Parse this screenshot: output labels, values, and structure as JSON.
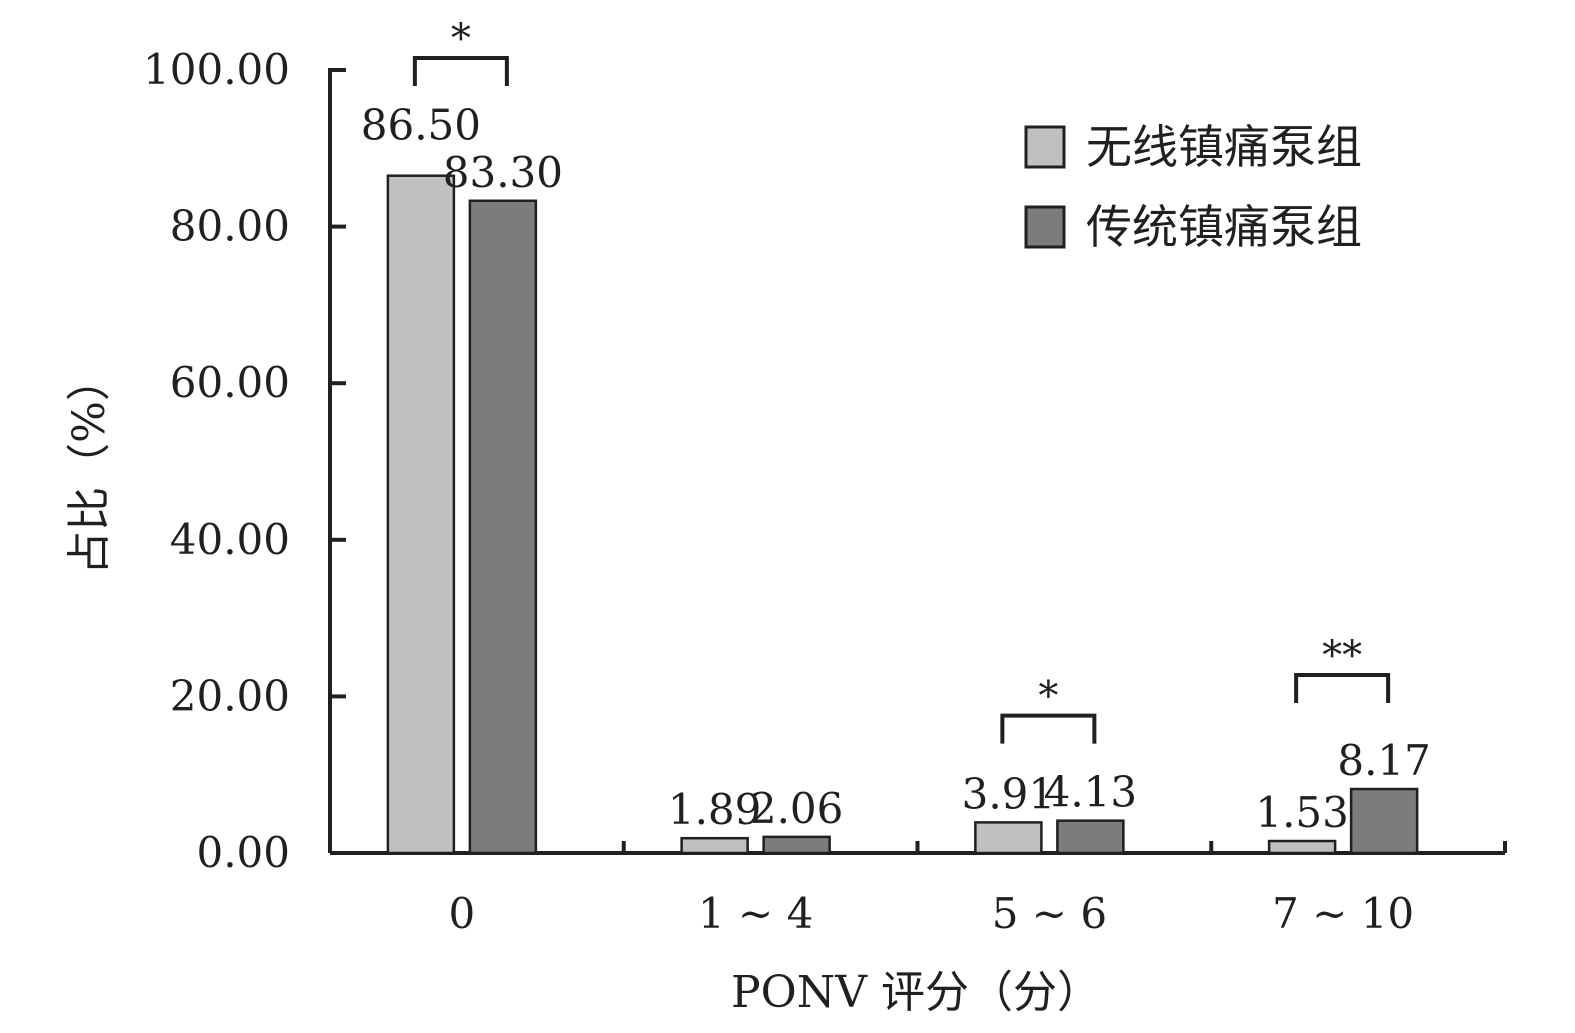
{
  "chart_data": {
    "type": "bar",
    "xlabel": "PONV 评分（分）",
    "ylabel": "占比（%）",
    "ylim": [
      0,
      100
    ],
    "yticks": [
      "0.00",
      "20.00",
      "40.00",
      "60.00",
      "80.00",
      "100.00"
    ],
    "categories": [
      "0",
      "1 ~ 4",
      "5 ~ 6",
      "7 ~ 10"
    ],
    "series": [
      {
        "name": "无线镇痛泵组",
        "color": "#c0c0c0",
        "values": [
          86.5,
          1.89,
          3.91,
          1.53
        ],
        "labels": [
          "86.50",
          "1.89",
          "3.91",
          "1.53"
        ]
      },
      {
        "name": "传统镇痛泵组",
        "color": "#7d7b7c",
        "values": [
          83.3,
          2.06,
          4.13,
          8.17
        ],
        "labels": [
          "83.30",
          "2.06",
          "4.13",
          "8.17"
        ]
      }
    ],
    "significance": [
      {
        "category_index": 0,
        "label": "*"
      },
      {
        "category_index": 2,
        "label": "*"
      },
      {
        "category_index": 3,
        "label": "**"
      }
    ],
    "legend_position": "top-right",
    "grid": false
  }
}
